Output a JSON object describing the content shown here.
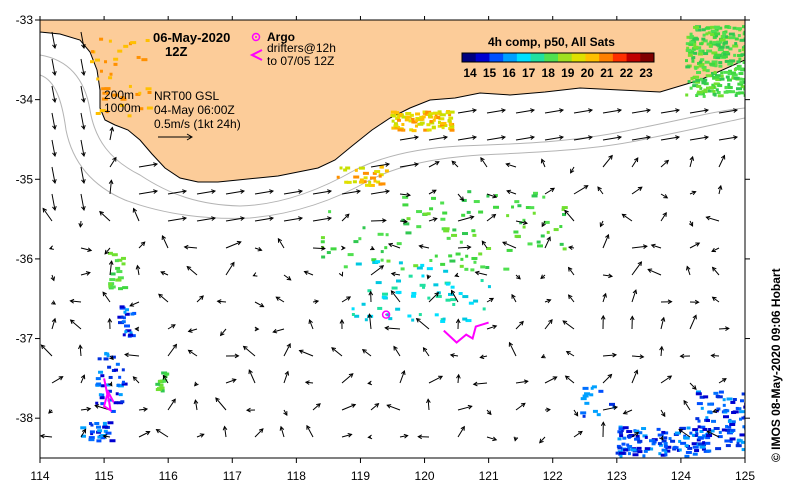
{
  "title": {
    "date": "06-May-2020",
    "hour": "12Z"
  },
  "legend_markers": {
    "argo_label": "Argo",
    "drifters_line1": "drifters@12h",
    "drifters_line2": "to 07/05 12Z",
    "argo_color": "#ff00ff",
    "drifter_color": "#ff00ff"
  },
  "isobaths": {
    "label_200": "200m",
    "label_1000": "1000m"
  },
  "currents_info": {
    "line1": "NRT00 GSL",
    "line2": "04-May 06:00Z",
    "line3": "0.5m/s (1kt 24h)"
  },
  "colorbar": {
    "title": "4h comp, p50, All Sats",
    "ticks": [
      "14",
      "15",
      "16",
      "17",
      "18",
      "19",
      "20",
      "21",
      "22",
      "23"
    ],
    "colors": [
      "#000080",
      "#0000d0",
      "#0050ff",
      "#00a0ff",
      "#00e0ff",
      "#20e0a0",
      "#50e050",
      "#a0e020",
      "#e0e000",
      "#ffc000",
      "#ff8000",
      "#ff3000",
      "#c00000",
      "#800000"
    ]
  },
  "credit": "©  IMOS 08-May-2020 09:06 Hobart",
  "axes": {
    "x_ticks": [
      "114",
      "115",
      "116",
      "117",
      "118",
      "119",
      "120",
      "121",
      "122",
      "123",
      "124",
      "125"
    ],
    "y_ticks": [
      "-33",
      "-34",
      "-35",
      "-36",
      "-37",
      "-38"
    ],
    "x_range": [
      114,
      125
    ],
    "y_range": [
      -38.5,
      -33
    ]
  },
  "argo_float": {
    "lon": 119.4,
    "lat": -36.7
  },
  "drifters": [
    {
      "name": "drifter-a",
      "track": [
        [
          120.3,
          -36.9
        ],
        [
          120.5,
          -37.05
        ],
        [
          120.65,
          -36.95
        ],
        [
          120.75,
          -37.0
        ],
        [
          120.8,
          -36.85
        ],
        [
          121.0,
          -36.8
        ]
      ]
    },
    {
      "name": "drifter-b",
      "track": [
        [
          115.0,
          -37.5
        ],
        [
          115.05,
          -37.7
        ],
        [
          115.0,
          -37.85
        ],
        [
          115.1,
          -37.9
        ],
        [
          115.05,
          -37.65
        ],
        [
          115.15,
          -37.8
        ]
      ]
    }
  ],
  "colors": {
    "land": "#fccc99",
    "coast": "#000000",
    "isobath": "#b4b4b4",
    "arrow": "#000000"
  }
}
